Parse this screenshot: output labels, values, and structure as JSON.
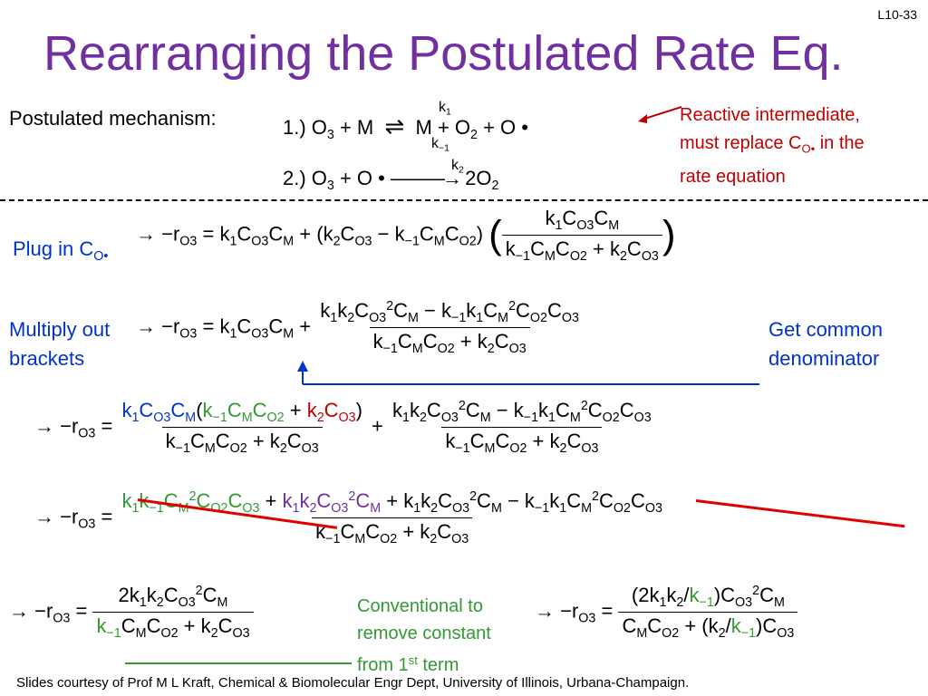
{
  "slide_number": "L10-33",
  "title": "Rearranging the Postulated Rate Eq.",
  "mechanism": {
    "label": "Postulated mechanism:",
    "step1": "1.) O₃ + M ⇌ M + O₂ + O•",
    "k1": "k₁",
    "km1": "k₋₁",
    "step2": "2.) O₃ + O• ⟶ 2O₂",
    "k2": "k₂"
  },
  "note_intermediate": "Reactive intermediate, must replace C_O• in the rate equation",
  "plug_label": "Plug in C_O•",
  "multiply_label": "Multiply out brackets",
  "common_label": "Get common denominator",
  "conventional_label": "Conventional to remove constant from 1st term",
  "footer": "Slides courtesy of Prof M L Kraft, Chemical & Biomolecular Engr Dept, University of Illinois, Urbana-Champaign.",
  "colors": {
    "title": "#7030a0",
    "red": "#c00000",
    "blue": "#0033cc",
    "green": "#339933"
  }
}
